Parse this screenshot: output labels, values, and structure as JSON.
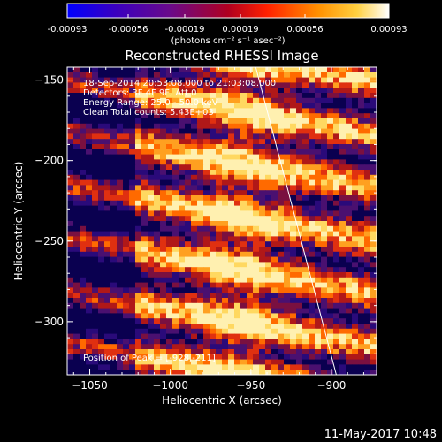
{
  "colorbar": {
    "ticks": [
      "-0.00093",
      "-0.00056",
      "-0.00019",
      "0.00019",
      "0.00056",
      "0.00093"
    ],
    "units": "(photons cm⁻² s⁻¹ asec⁻²)"
  },
  "footer_timestamp": "11-May-2017 10:48",
  "info_lines": [
    "18-Sep-2014 20:53:08.000 to 21:03:08.000",
    "Detectors: 3F 4F 9F, Att 0",
    "Energy Range: 25.0 - 50.0 keV",
    "Clean    Total counts: 5.43E+03"
  ],
  "peak_label": "Position of Peak = [-928,-211]",
  "chart_data": {
    "type": "heatmap",
    "title": "Reconstructed RHESSI Image",
    "xlabel": "Heliocentric X (arcsec)",
    "ylabel": "Heliocentric Y (arcsec)",
    "xlim": [
      -1064,
      -872
    ],
    "ylim": [
      -333,
      -142
    ],
    "x_ticks": [
      -1050,
      -1000,
      -950,
      -900
    ],
    "y_ticks": [
      -300,
      -250,
      -200,
      -150
    ],
    "x_tick_labels": [
      "−1050",
      "−1000",
      "−950",
      "−900"
    ],
    "y_tick_labels": [
      "−300",
      "−250",
      "−200",
      "−150"
    ],
    "colorbar_range": [
      -0.00093,
      0.00093
    ],
    "peak_position": [
      -928,
      -211
    ],
    "limb_line": [
      [
        -947,
        -142
      ],
      [
        -897,
        -333
      ]
    ],
    "grid": false
  }
}
